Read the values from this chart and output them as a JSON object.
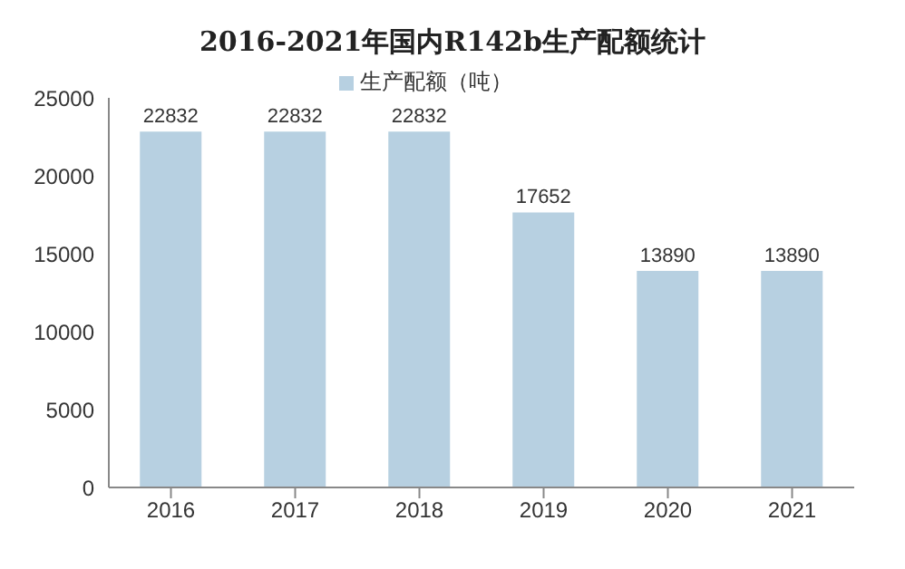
{
  "chart_data": {
    "type": "bar",
    "title": "2016-2021年国内R142b生产配额统计",
    "categories": [
      "2016",
      "2017",
      "2018",
      "2019",
      "2020",
      "2021"
    ],
    "series": [
      {
        "name": "生产配额（吨）",
        "color": "#b7d0e1",
        "values": [
          22832,
          22832,
          22832,
          17652,
          13890,
          13890
        ]
      }
    ],
    "ylim": [
      0,
      25000
    ],
    "yticks": [
      0,
      5000,
      10000,
      15000,
      20000,
      25000
    ],
    "grid": false,
    "legend": "top",
    "data_labels": true
  }
}
